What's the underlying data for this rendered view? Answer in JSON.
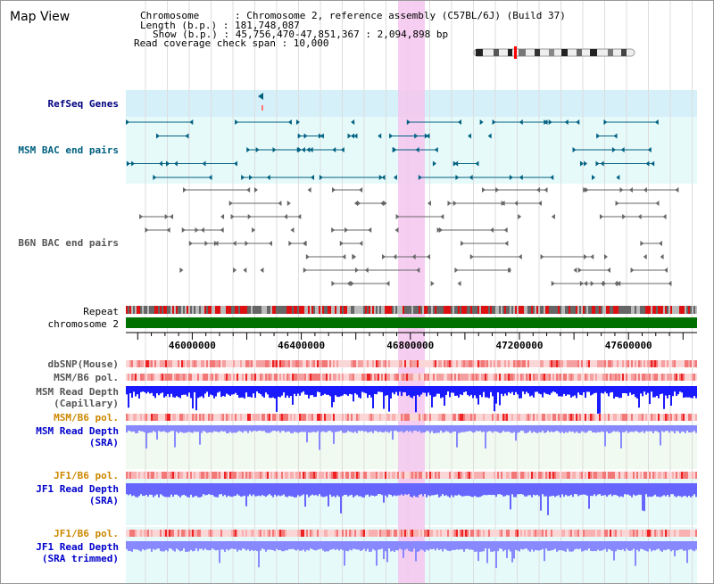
{
  "view_title": "Map View",
  "info": {
    "chromosome": "Chromosome      : Chromosome 2, reference assembly (C57BL/6J) (Build 37)",
    "length": "Length (b.p.) : 181,748,087",
    "show": "Show (b.p.) : 45,756,470-47,851,367 : 2,094,898 bp",
    "coverage": "Read coverage check span : 10,000"
  },
  "tracks": {
    "refseq": "RefSeq Genes",
    "msm_bac": "MSM BAC end pairs",
    "b6n_bac": "B6N BAC end pairs",
    "repeat": "Repeat",
    "chromosome": "chromosome 2",
    "dbsnp": "dbSNP(Mouse)",
    "msm_b6_pol": "MSM/B6 pol.",
    "msm_depth_cap_1": "MSM Read Depth",
    "msm_depth_cap_2": "(Capillary)",
    "msm_b6_pol_sra": "MSM/B6 pol.",
    "msm_depth_sra_1": "MSM Read Depth",
    "msm_depth_sra_2": "(SRA)",
    "jf1_b6_pol": "JF1/B6 pol.",
    "jf1_depth_sra_1": "JF1 Read Depth",
    "jf1_depth_sra_2": "(SRA)",
    "jf1_b6_pol_trim": "JF1/B6 pol.",
    "jf1_depth_trim_1": "JF1 Read Depth",
    "jf1_depth_trim_2": "(SRA trimmed)"
  },
  "axis": {
    "start_bp": 45756470,
    "end_bp": 47851367,
    "tick_labels": [
      "46000000",
      "46400000",
      "46800000",
      "47200000",
      "47600000"
    ],
    "tick_values": [
      46000000,
      46400000,
      46800000,
      47200000,
      47600000
    ]
  },
  "colors": {
    "label_dark": "#000080",
    "label_teal": "#006080",
    "label_gray": "#555555",
    "label_orange": "#cc8800",
    "label_blue": "#0000cc",
    "refseq_bg": "#d6f0fa",
    "bac_bg": "#e6fafa",
    "highlight": "#f4c6ee",
    "chromosome": "#007000",
    "depth_dark": "#0000ff",
    "depth_light": "#6666ff"
  }
}
